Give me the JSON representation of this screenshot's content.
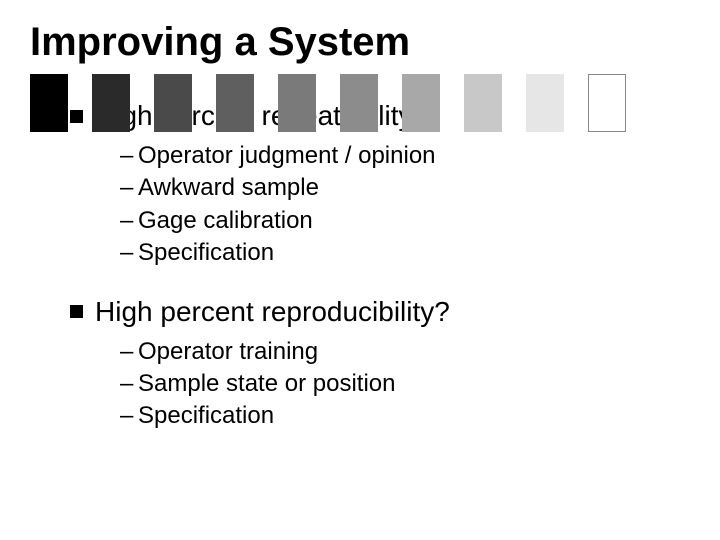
{
  "title": "Improving a System",
  "bars": {
    "count": 10,
    "width": 38,
    "height": 58,
    "gap": 24,
    "colors": [
      "#000000",
      "#2a2a2a",
      "#4a4a4a",
      "#5f5f5f",
      "#7a7a7a",
      "#8c8c8c",
      "#a8a8a8",
      "#c8c8c8",
      "#e6e6e6",
      "#ffffff"
    ],
    "border_color": "#888888",
    "border_on_last": true
  },
  "sections": [
    {
      "heading": "High percent repeatability?",
      "items": [
        "Operator judgment / opinion",
        "Awkward sample",
        "Gage calibration",
        "Specification"
      ]
    },
    {
      "heading": "High percent reproducibility?",
      "items": [
        "Operator training",
        "Sample state or position",
        "Specification"
      ]
    }
  ],
  "typography": {
    "title_fontsize": 40,
    "heading_fontsize": 28,
    "subitem_fontsize": 24,
    "font_family": "Arial"
  },
  "colors": {
    "background": "#ffffff",
    "text": "#000000",
    "bullet": "#000000"
  }
}
